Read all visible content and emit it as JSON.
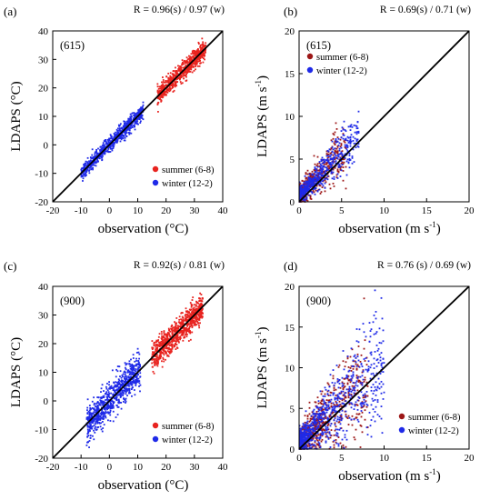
{
  "chart_data": [
    {
      "type": "scatter",
      "panel_label": "(a)",
      "r_text": "R = 0.96(s) / 0.97 (w)",
      "station": "(615)",
      "xlabel_main": "observation",
      "xlabel_unit": "(°C)",
      "ylabel_main": "LDAPS",
      "ylabel_unit": "(°C)",
      "xlim": [
        -20,
        40
      ],
      "ylim": [
        -20,
        40
      ],
      "xticks": [
        -20,
        -10,
        0,
        10,
        20,
        30,
        40
      ],
      "yticks": [
        -20,
        -10,
        0,
        10,
        20,
        30,
        40
      ],
      "legend_position": "bottom-right",
      "one_to_one_line": true,
      "series": [
        {
          "name": "summer (6-8)",
          "color": "#e8231f",
          "x_range": [
            17,
            34
          ],
          "spread": 1.6,
          "n": 700
        },
        {
          "name": "winter (12-2)",
          "color": "#1f2ae8",
          "x_range": [
            -10,
            12
          ],
          "spread": 1.4,
          "n": 700
        }
      ]
    },
    {
      "type": "scatter",
      "panel_label": "(b)",
      "r_text": "R = 0.69(s) / 0.71 (w)",
      "station": "(615)",
      "xlabel_main": "observation",
      "xlabel_unit": "(m s",
      "ylabel_main": "LDAPS",
      "ylabel_unit": "(m s",
      "unit_sup": "-1",
      "xlim": [
        0,
        20
      ],
      "ylim": [
        0,
        20
      ],
      "xticks": [
        0,
        5,
        10,
        15,
        20
      ],
      "yticks": [
        0,
        5,
        10,
        15,
        20
      ],
      "legend_position": "top-left",
      "one_to_one_line": true,
      "series": [
        {
          "name": "summer (6-8)",
          "color": "#9c1616",
          "x_range": [
            0,
            5.5
          ],
          "spread": 1.3,
          "n": 500
        },
        {
          "name": "winter (12-2)",
          "color": "#1f2ae8",
          "x_range": [
            0,
            7
          ],
          "spread": 1.0,
          "n": 600
        }
      ]
    },
    {
      "type": "scatter",
      "panel_label": "(c)",
      "r_text": "R = 0.92(s) / 0.81 (w)",
      "station": "(900)",
      "xlabel_main": "observation",
      "xlabel_unit": "(°C)",
      "ylabel_main": "LDAPS",
      "ylabel_unit": "(°C)",
      "xlim": [
        -20,
        40
      ],
      "ylim": [
        -20,
        40
      ],
      "xticks": [
        -20,
        -10,
        0,
        10,
        20,
        30,
        40
      ],
      "yticks": [
        -20,
        -10,
        0,
        10,
        20,
        30,
        40
      ],
      "legend_position": "bottom-right",
      "one_to_one_line": true,
      "series": [
        {
          "name": "summer (6-8)",
          "color": "#e8231f",
          "x_range": [
            15,
            33
          ],
          "spread": 2.4,
          "n": 800
        },
        {
          "name": "winter (12-2)",
          "color": "#1f2ae8",
          "x_range": [
            -8,
            11
          ],
          "spread": 3.0,
          "n": 800
        }
      ]
    },
    {
      "type": "scatter",
      "panel_label": "(d)",
      "r_text": "R = 0.76 (s) / 0.69 (w)",
      "station": "(900)",
      "xlabel_main": "observation",
      "xlabel_unit": "(m s",
      "ylabel_main": "LDAPS",
      "ylabel_unit": "(m s",
      "unit_sup": "-1",
      "xlim": [
        0,
        20
      ],
      "ylim": [
        0,
        20
      ],
      "xticks": [
        0,
        5,
        10,
        15,
        20
      ],
      "yticks": [
        0,
        5,
        10,
        15,
        20
      ],
      "legend_position": "bottom-right",
      "one_to_one_line": true,
      "series": [
        {
          "name": "summer (6-8)",
          "color": "#9c1616",
          "x_range": [
            0,
            8
          ],
          "spread": 2.0,
          "n": 700
        },
        {
          "name": "winter (12-2)",
          "color": "#1f2ae8",
          "x_range": [
            0,
            10
          ],
          "spread": 1.8,
          "n": 800
        }
      ]
    }
  ]
}
